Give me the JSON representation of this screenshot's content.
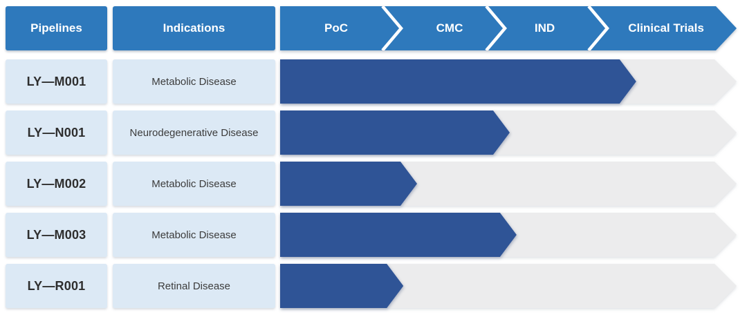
{
  "header": {
    "pipelines_label": "Pipelines",
    "indications_label": "Indications"
  },
  "chart_data": {
    "type": "bar",
    "title": "",
    "xlabel": "",
    "ylabel": "",
    "stages": [
      "PoC",
      "CMC",
      "IND",
      "Clinical Trials"
    ],
    "stage_boundaries_percent": [
      0,
      26.5,
      49.2,
      71.7,
      100
    ],
    "rows": [
      {
        "pipeline": "LY—M001",
        "indication": "Metabolic Disease",
        "progress_percent": 78.0,
        "stage_reached": "Clinical Trials"
      },
      {
        "pipeline": "LY—N001",
        "indication": "Neurodegenerative Disease",
        "progress_percent": 50.3,
        "stage_reached": "IND"
      },
      {
        "pipeline": "LY—M002",
        "indication": "Metabolic Disease",
        "progress_percent": 30.0,
        "stage_reached": "CMC"
      },
      {
        "pipeline": "LY—M003",
        "indication": "Metabolic Disease",
        "progress_percent": 51.8,
        "stage_reached": "IND"
      },
      {
        "pipeline": "LY—R001",
        "indication": "Retinal Disease",
        "progress_percent": 27.0,
        "stage_reached": "CMC"
      }
    ]
  },
  "colors": {
    "header_blue": "#2E79BC",
    "progress_navy": "#2F5496",
    "row_label_bg": "#DCE9F5",
    "track_gray": "#ECECED",
    "text_dark": "#2E2E2E",
    "white": "#FFFFFF"
  }
}
